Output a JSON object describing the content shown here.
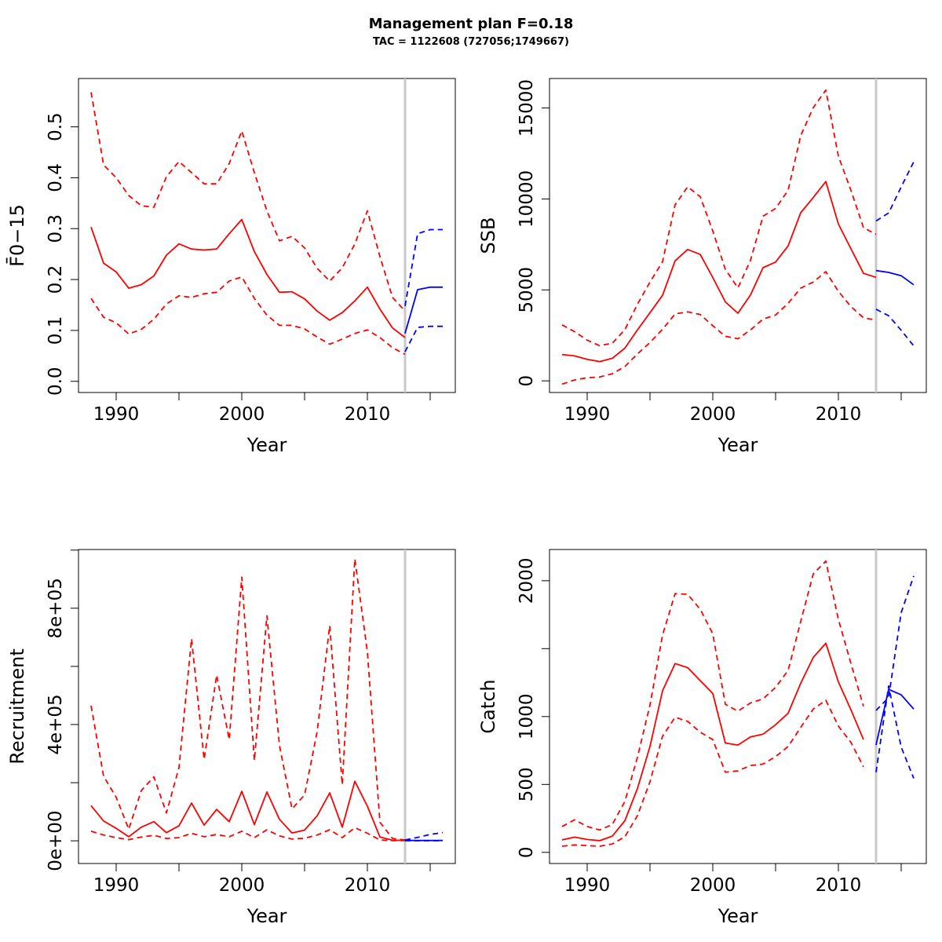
{
  "title": "Management plan F=0.18",
  "subtitle": "TAC = 1122608 (727056;1749667)",
  "colors": {
    "history": "#ff0000",
    "forecast": "#0000ff",
    "divider": "#c8c8c8"
  },
  "chart_data": [
    {
      "type": "line",
      "xlabel": "Year",
      "ylabel": "F̄0−15",
      "xlim": [
        1987,
        2017
      ],
      "ylim": [
        -0.022,
        0.595
      ],
      "x_ticks": [
        1990,
        2000,
        2010
      ],
      "x_minor_ticks": [
        1995,
        2005,
        2015
      ],
      "y_ticks": [
        "0.0",
        "0.1",
        "0.2",
        "0.3",
        "0.4",
        "0.5"
      ],
      "divider_x": 2013,
      "series": [
        {
          "role": "estimate",
          "line": "solid",
          "color": "#ff0000",
          "x": [
            1988,
            1989,
            1990,
            1991,
            1992,
            1993,
            1994,
            1995,
            1996,
            1997,
            1998,
            1999,
            2000,
            2001,
            2002,
            2003,
            2004,
            2005,
            2006,
            2007,
            2008,
            2009,
            2010,
            2011,
            2012,
            2013
          ],
          "y": [
            0.303,
            0.232,
            0.215,
            0.183,
            0.19,
            0.207,
            0.248,
            0.27,
            0.26,
            0.258,
            0.26,
            0.29,
            0.318,
            0.255,
            0.21,
            0.175,
            0.176,
            0.162,
            0.138,
            0.12,
            0.135,
            0.158,
            0.185,
            0.142,
            0.105,
            0.086
          ]
        },
        {
          "role": "upper",
          "line": "dashed",
          "color": "#ff0000",
          "x": [
            1988,
            1989,
            1990,
            1991,
            1992,
            1993,
            1994,
            1995,
            1996,
            1997,
            1998,
            1999,
            2000,
            2001,
            2002,
            2003,
            2004,
            2005,
            2006,
            2007,
            2008,
            2009,
            2010,
            2011,
            2012,
            2013
          ],
          "y": [
            0.568,
            0.425,
            0.4,
            0.365,
            0.345,
            0.342,
            0.402,
            0.432,
            0.41,
            0.388,
            0.388,
            0.428,
            0.492,
            0.41,
            0.335,
            0.276,
            0.285,
            0.262,
            0.222,
            0.197,
            0.223,
            0.27,
            0.335,
            0.245,
            0.165,
            0.138
          ]
        },
        {
          "role": "lower",
          "line": "dashed",
          "color": "#ff0000",
          "x": [
            1988,
            1989,
            1990,
            1991,
            1992,
            1993,
            1994,
            1995,
            1996,
            1997,
            1998,
            1999,
            2000,
            2001,
            2002,
            2003,
            2004,
            2005,
            2006,
            2007,
            2008,
            2009,
            2010,
            2011,
            2012,
            2013
          ],
          "y": [
            0.163,
            0.126,
            0.115,
            0.093,
            0.102,
            0.122,
            0.152,
            0.168,
            0.165,
            0.172,
            0.175,
            0.197,
            0.205,
            0.163,
            0.13,
            0.11,
            0.11,
            0.103,
            0.087,
            0.073,
            0.083,
            0.094,
            0.101,
            0.086,
            0.066,
            0.053
          ]
        },
        {
          "role": "forecast",
          "line": "solid",
          "color": "#0000ff",
          "x": [
            2013,
            2014,
            2015,
            2016
          ],
          "y": [
            0.094,
            0.18,
            0.185,
            0.185
          ]
        },
        {
          "role": "forecast-upper",
          "line": "dashed",
          "color": "#0000ff",
          "x": [
            2013,
            2014,
            2015,
            2016
          ],
          "y": [
            0.148,
            0.29,
            0.298,
            0.298
          ]
        },
        {
          "role": "forecast-lower",
          "line": "dashed",
          "color": "#0000ff",
          "x": [
            2013,
            2014,
            2015,
            2016
          ],
          "y": [
            0.058,
            0.106,
            0.108,
            0.108
          ]
        }
      ]
    },
    {
      "type": "line",
      "xlabel": "Year",
      "ylabel": "SSB",
      "xlim": [
        1987,
        2017
      ],
      "ylim": [
        -640,
        16620
      ],
      "x_ticks": [
        1990,
        2000,
        2010
      ],
      "x_minor_ticks": [
        1995,
        2005,
        2015
      ],
      "y_ticks": [
        "0",
        "5000",
        "10000",
        "15000"
      ],
      "divider_x": 2013,
      "series": [
        {
          "role": "estimate",
          "line": "solid",
          "color": "#ff0000",
          "x": [
            1988,
            1989,
            1990,
            1991,
            1992,
            1993,
            1994,
            1995,
            1996,
            1997,
            1998,
            1999,
            2000,
            2001,
            2002,
            2003,
            2004,
            2005,
            2006,
            2007,
            2008,
            2009,
            2010,
            2011,
            2012,
            2013
          ],
          "y": [
            1450,
            1370,
            1180,
            1060,
            1240,
            1800,
            2800,
            3750,
            4700,
            6600,
            7220,
            6950,
            5680,
            4340,
            3720,
            4720,
            6220,
            6530,
            7420,
            9240,
            10080,
            10960,
            8620,
            7260,
            5910,
            5690
          ]
        },
        {
          "role": "upper",
          "line": "dashed",
          "color": "#ff0000",
          "x": [
            1988,
            1989,
            1990,
            1991,
            1992,
            1993,
            1994,
            1995,
            1996,
            1997,
            1998,
            1999,
            2000,
            2001,
            2002,
            2003,
            2004,
            2005,
            2006,
            2007,
            2008,
            2009,
            2010,
            2011,
            2012,
            2013
          ],
          "y": [
            3080,
            2700,
            2240,
            1930,
            2070,
            2810,
            4210,
            5430,
            6550,
            9680,
            10670,
            10120,
            8240,
            6130,
            5110,
            6620,
            9050,
            9480,
            10480,
            13480,
            15020,
            15980,
            12350,
            10470,
            8420,
            8050
          ]
        },
        {
          "role": "lower",
          "line": "dashed",
          "color": "#ff0000",
          "x": [
            1988,
            1989,
            1990,
            1991,
            1992,
            1993,
            1994,
            1995,
            1996,
            1997,
            1998,
            1999,
            2000,
            2001,
            2002,
            2003,
            2004,
            2005,
            2006,
            2007,
            2008,
            2009,
            2010,
            2011,
            2012,
            2013
          ],
          "y": [
            -180,
            50,
            170,
            210,
            390,
            790,
            1480,
            2110,
            2840,
            3680,
            3790,
            3650,
            3030,
            2450,
            2310,
            2800,
            3400,
            3620,
            4260,
            5100,
            5430,
            6000,
            4920,
            4080,
            3470,
            3340
          ]
        },
        {
          "role": "forecast",
          "line": "solid",
          "color": "#0000ff",
          "x": [
            2013,
            2014,
            2015,
            2016
          ],
          "y": [
            6060,
            5960,
            5780,
            5280
          ]
        },
        {
          "role": "forecast-upper",
          "line": "dashed",
          "color": "#0000ff",
          "x": [
            2013,
            2014,
            2015,
            2016
          ],
          "y": [
            8790,
            9230,
            10660,
            12040
          ]
        },
        {
          "role": "forecast-lower",
          "line": "dashed",
          "color": "#0000ff",
          "x": [
            2013,
            2014,
            2015,
            2016
          ],
          "y": [
            3940,
            3580,
            2780,
            1920
          ]
        }
      ]
    },
    {
      "type": "line",
      "xlabel": "Year",
      "ylabel": "Recruitment",
      "xlim": [
        1987,
        2017
      ],
      "ylim": [
        -78000,
        1002000
      ],
      "x_ticks": [
        1990,
        2000,
        2010
      ],
      "x_minor_ticks": [
        1995,
        2005,
        2015
      ],
      "y_ticks": [
        "0e+00",
        "4e+05",
        "8e+05"
      ],
      "y_minor_ticks": [
        200000,
        600000,
        1000000
      ],
      "divider_x": 2013,
      "series": [
        {
          "role": "estimate",
          "line": "solid",
          "color": "#ff0000",
          "x": [
            1988,
            1989,
            1990,
            1991,
            1992,
            1993,
            1994,
            1995,
            1996,
            1997,
            1998,
            1999,
            2000,
            2001,
            2002,
            2003,
            2004,
            2005,
            2006,
            2007,
            2008,
            2009,
            2010,
            2011,
            2012,
            2013
          ],
          "y": [
            121000,
            68000,
            43000,
            14000,
            47000,
            66000,
            28000,
            52000,
            130000,
            54000,
            108000,
            66000,
            170000,
            56000,
            168000,
            74000,
            27000,
            37000,
            86000,
            165000,
            47000,
            205000,
            119000,
            13000,
            2000,
            2000
          ]
        },
        {
          "role": "upper",
          "line": "dashed",
          "color": "#ff0000",
          "x": [
            1988,
            1989,
            1990,
            1991,
            1992,
            1993,
            1994,
            1995,
            1996,
            1997,
            1998,
            1999,
            2000,
            2001,
            2002,
            2003,
            2004,
            2005,
            2006,
            2007,
            2008,
            2009,
            2010,
            2011,
            2012,
            2013
          ],
          "y": [
            465000,
            222000,
            150000,
            40000,
            173000,
            220000,
            96000,
            252000,
            695000,
            280000,
            570000,
            348000,
            907000,
            276000,
            774000,
            328000,
            110000,
            158000,
            375000,
            740000,
            193000,
            970000,
            650000,
            64000,
            8000,
            3000
          ]
        },
        {
          "role": "lower",
          "line": "dashed",
          "color": "#ff0000",
          "x": [
            1988,
            1989,
            1990,
            1991,
            1992,
            1993,
            1994,
            1995,
            1996,
            1997,
            1998,
            1999,
            2000,
            2001,
            2002,
            2003,
            2004,
            2005,
            2006,
            2007,
            2008,
            2009,
            2010,
            2011,
            2012,
            2013
          ],
          "y": [
            33000,
            20000,
            11000,
            4000,
            13000,
            19000,
            8000,
            11000,
            26000,
            14000,
            22000,
            14000,
            33000,
            11000,
            38000,
            17000,
            6000,
            9000,
            20000,
            38000,
            11000,
            45000,
            26000,
            3000,
            500,
            500
          ]
        },
        {
          "role": "forecast",
          "line": "solid",
          "color": "#0000ff",
          "x": [
            2013,
            2014,
            2015,
            2016
          ],
          "y": [
            1000,
            1000,
            1000,
            1000
          ]
        },
        {
          "role": "forecast-upper",
          "line": "dashed",
          "color": "#0000ff",
          "x": [
            2013,
            2014,
            2015,
            2016
          ],
          "y": [
            3000,
            12000,
            22000,
            28000
          ]
        },
        {
          "role": "forecast-lower",
          "line": "dashed",
          "color": "#0000ff",
          "x": [
            2013,
            2014,
            2015,
            2016
          ],
          "y": [
            300,
            300,
            300,
            300
          ]
        }
      ]
    },
    {
      "type": "line",
      "xlabel": "Year",
      "ylabel": "Catch",
      "xlim": [
        1987,
        2017
      ],
      "ylim": [
        -82,
        2230
      ],
      "x_ticks": [
        1990,
        2000,
        2010
      ],
      "x_minor_ticks": [
        1995,
        2005,
        2015
      ],
      "y_ticks": [
        "0",
        "500",
        "1000",
        "2000"
      ],
      "y_minor_ticks": [
        1500
      ],
      "divider_x": 2013,
      "series": [
        {
          "role": "estimate",
          "line": "solid",
          "color": "#ff0000",
          "x": [
            1988,
            1989,
            1990,
            1991,
            1992,
            1993,
            1994,
            1995,
            1996,
            1997,
            1998,
            1999,
            2000,
            2001,
            2002,
            2003,
            2004,
            2005,
            2006,
            2007,
            2008,
            2009,
            2010,
            2011,
            2012
          ],
          "y": [
            92,
            112,
            95,
            86,
            120,
            233,
            470,
            780,
            1190,
            1390,
            1360,
            1265,
            1170,
            805,
            790,
            850,
            870,
            940,
            1025,
            1245,
            1435,
            1540,
            1255,
            1050,
            830
          ]
        },
        {
          "role": "upper",
          "line": "dashed",
          "color": "#ff0000",
          "x": [
            1988,
            1989,
            1990,
            1991,
            1992,
            1993,
            1994,
            1995,
            1996,
            1997,
            1998,
            1999,
            2000,
            2001,
            2002,
            2003,
            2004,
            2005,
            2006,
            2007,
            2008,
            2009,
            2010,
            2011,
            2012
          ],
          "y": [
            190,
            240,
            190,
            165,
            205,
            375,
            700,
            1085,
            1600,
            1905,
            1900,
            1790,
            1610,
            1090,
            1040,
            1100,
            1130,
            1215,
            1340,
            1700,
            2050,
            2145,
            1715,
            1390,
            1075
          ]
        },
        {
          "role": "lower",
          "line": "dashed",
          "color": "#ff0000",
          "x": [
            1988,
            1989,
            1990,
            1991,
            1992,
            1993,
            1994,
            1995,
            1996,
            1997,
            1998,
            1999,
            2000,
            2001,
            2002,
            2003,
            2004,
            2005,
            2006,
            2007,
            2008,
            2009,
            2010,
            2011,
            2012
          ],
          "y": [
            45,
            55,
            50,
            45,
            62,
            115,
            270,
            520,
            855,
            995,
            965,
            885,
            830,
            590,
            600,
            640,
            650,
            705,
            780,
            920,
            1055,
            1120,
            930,
            810,
            630
          ]
        },
        {
          "role": "forecast",
          "line": "solid",
          "color": "#0000ff",
          "x": [
            2013,
            2014,
            2015,
            2016
          ],
          "y": [
            790,
            1200,
            1160,
            1055
          ]
        },
        {
          "role": "forecast-upper",
          "line": "dashed",
          "color": "#0000ff",
          "x": [
            2013,
            2014,
            2015,
            2016
          ],
          "y": [
            1045,
            1140,
            1765,
            2035
          ]
        },
        {
          "role": "forecast-lower",
          "line": "dashed",
          "color": "#0000ff",
          "x": [
            2013,
            2014,
            2015,
            2016
          ],
          "y": [
            590,
            1225,
            775,
            545
          ]
        }
      ]
    }
  ]
}
